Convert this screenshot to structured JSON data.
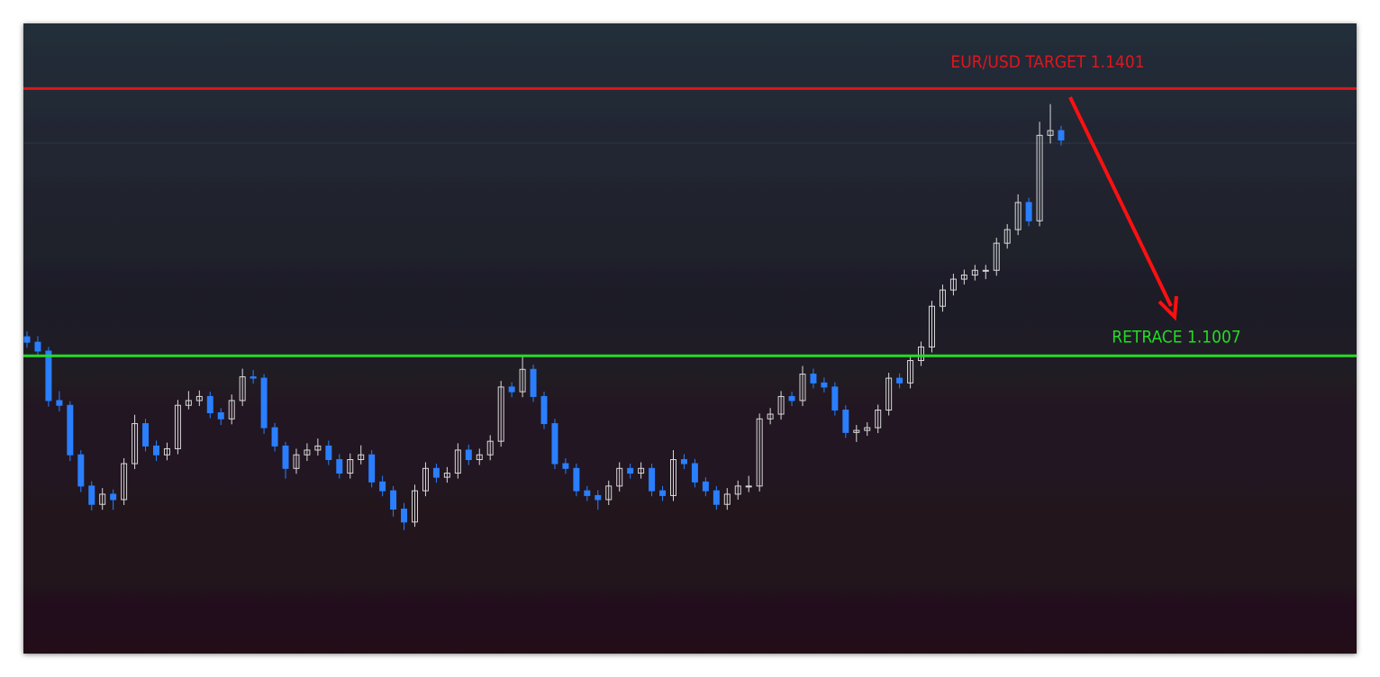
{
  "chart_data": {
    "type": "candlestick",
    "ylim": [
      1.0568,
      1.1497
    ],
    "up_color": "#d9d9d9",
    "down_color": "#2a7fff",
    "hlines": [
      {
        "value": 1.1401,
        "label": "EUR/USD TARGET 1.1401",
        "color": "#e0161b"
      },
      {
        "value": 1.1007,
        "label": "RETRACE 1.1007",
        "color": "#22dd22"
      }
    ],
    "ohlc": [
      [
        1.1035,
        1.1043,
        1.1019,
        1.1027
      ],
      [
        1.1027,
        1.1036,
        1.1005,
        1.1014
      ],
      [
        1.1014,
        1.102,
        1.0932,
        1.0941
      ],
      [
        1.0941,
        1.0955,
        1.0925,
        1.0934
      ],
      [
        1.0934,
        1.094,
        1.0852,
        1.0861
      ],
      [
        1.0861,
        1.0868,
        1.0806,
        1.0815
      ],
      [
        1.0815,
        1.0822,
        1.0779,
        1.0788
      ],
      [
        1.0788,
        1.0812,
        1.078,
        1.0803
      ],
      [
        1.0803,
        1.081,
        1.078,
        1.0795
      ],
      [
        1.0795,
        1.0856,
        1.0787,
        1.0848
      ],
      [
        1.0848,
        1.092,
        1.084,
        1.0907
      ],
      [
        1.0907,
        1.0914,
        1.0866,
        1.0874
      ],
      [
        1.0874,
        1.0882,
        1.0852,
        1.0861
      ],
      [
        1.0861,
        1.0879,
        1.0853,
        1.087
      ],
      [
        1.087,
        1.0942,
        1.0862,
        1.0934
      ],
      [
        1.0934,
        1.0955,
        1.0928,
        1.0941
      ],
      [
        1.0941,
        1.0956,
        1.0933,
        1.0947
      ],
      [
        1.0947,
        1.0954,
        1.0915,
        1.0923
      ],
      [
        1.0923,
        1.093,
        1.0905,
        1.0914
      ],
      [
        1.0914,
        1.095,
        1.0906,
        1.0941
      ],
      [
        1.0941,
        1.0988,
        1.0933,
        1.0976
      ],
      [
        1.0976,
        1.0986,
        1.0966,
        1.0974
      ],
      [
        1.0974,
        1.098,
        1.0892,
        1.0901
      ],
      [
        1.0901,
        1.0908,
        1.0866,
        1.0874
      ],
      [
        1.0874,
        1.088,
        1.0826,
        1.0841
      ],
      [
        1.0841,
        1.087,
        1.0833,
        1.0861
      ],
      [
        1.0861,
        1.0878,
        1.0852,
        1.0868
      ],
      [
        1.0868,
        1.0885,
        1.086,
        1.0874
      ],
      [
        1.0874,
        1.0882,
        1.0846,
        1.0854
      ],
      [
        1.0854,
        1.0862,
        1.0826,
        1.0834
      ],
      [
        1.0834,
        1.0863,
        1.0826,
        1.0854
      ],
      [
        1.0854,
        1.0875,
        1.0847,
        1.0861
      ],
      [
        1.0861,
        1.0868,
        1.0813,
        1.0821
      ],
      [
        1.0821,
        1.083,
        1.08,
        1.0808
      ],
      [
        1.0808,
        1.0815,
        1.077,
        1.0781
      ],
      [
        1.0781,
        1.079,
        1.075,
        1.0762
      ],
      [
        1.0762,
        1.0817,
        1.0755,
        1.0808
      ],
      [
        1.0808,
        1.085,
        1.08,
        1.0841
      ],
      [
        1.0841,
        1.0848,
        1.082,
        1.0828
      ],
      [
        1.0828,
        1.0843,
        1.082,
        1.0834
      ],
      [
        1.0834,
        1.0878,
        1.0826,
        1.0868
      ],
      [
        1.0868,
        1.0876,
        1.0846,
        1.0854
      ],
      [
        1.0854,
        1.087,
        1.0846,
        1.0861
      ],
      [
        1.0861,
        1.089,
        1.0853,
        1.0881
      ],
      [
        1.0881,
        1.097,
        1.0873,
        1.0961
      ],
      [
        1.0961,
        1.0968,
        1.0946,
        1.0954
      ],
      [
        1.0954,
        1.1008,
        1.0946,
        1.0987
      ],
      [
        1.0987,
        1.0994,
        1.0939,
        1.0947
      ],
      [
        1.0947,
        1.0954,
        1.0899,
        1.0907
      ],
      [
        1.0907,
        1.0914,
        1.084,
        1.0848
      ],
      [
        1.0848,
        1.0856,
        1.0833,
        1.0841
      ],
      [
        1.0841,
        1.0848,
        1.08,
        1.0808
      ],
      [
        1.0808,
        1.0815,
        1.0793,
        1.0801
      ],
      [
        1.0801,
        1.0809,
        1.078,
        1.0795
      ],
      [
        1.0795,
        1.0823,
        1.0787,
        1.0815
      ],
      [
        1.0815,
        1.085,
        1.0807,
        1.0841
      ],
      [
        1.0841,
        1.0848,
        1.0826,
        1.0834
      ],
      [
        1.0834,
        1.085,
        1.0826,
        1.0841
      ],
      [
        1.0841,
        1.0848,
        1.08,
        1.0808
      ],
      [
        1.0808,
        1.0815,
        1.0793,
        1.0801
      ],
      [
        1.0801,
        1.0868,
        1.0793,
        1.0854
      ],
      [
        1.0854,
        1.0862,
        1.084,
        1.0848
      ],
      [
        1.0848,
        1.0855,
        1.0813,
        1.0821
      ],
      [
        1.0821,
        1.0828,
        1.08,
        1.0808
      ],
      [
        1.0808,
        1.0815,
        1.078,
        1.0788
      ],
      [
        1.0788,
        1.0812,
        1.078,
        1.0803
      ],
      [
        1.0803,
        1.0823,
        1.0795,
        1.0815
      ],
      [
        1.0815,
        1.083,
        1.0806,
        1.0815
      ],
      [
        1.0815,
        1.0922,
        1.0807,
        1.0914
      ],
      [
        1.0914,
        1.093,
        1.0906,
        1.0921
      ],
      [
        1.0921,
        1.0955,
        1.0913,
        1.0947
      ],
      [
        1.0947,
        1.0954,
        1.0933,
        1.0941
      ],
      [
        1.0941,
        1.0992,
        1.0933,
        1.098
      ],
      [
        1.098,
        1.0988,
        1.0959,
        1.0967
      ],
      [
        1.0967,
        1.0975,
        1.0953,
        1.0961
      ],
      [
        1.0961,
        1.0968,
        1.0919,
        1.0927
      ],
      [
        1.0927,
        1.0934,
        1.0886,
        1.0894
      ],
      [
        1.0894,
        1.0905,
        1.088,
        1.0897
      ],
      [
        1.0897,
        1.0909,
        1.0889,
        1.0901
      ],
      [
        1.0901,
        1.0935,
        1.0893,
        1.0927
      ],
      [
        1.0927,
        1.0982,
        1.0919,
        1.0974
      ],
      [
        1.0974,
        1.0981,
        1.0959,
        1.0967
      ],
      [
        1.0967,
        1.1008,
        1.0959,
        1.1
      ],
      [
        1.1,
        1.1028,
        1.0992,
        1.102
      ],
      [
        1.102,
        1.1088,
        1.1012,
        1.108
      ],
      [
        1.108,
        1.1112,
        1.1072,
        1.1104
      ],
      [
        1.1104,
        1.1128,
        1.1096,
        1.112
      ],
      [
        1.112,
        1.1134,
        1.1112,
        1.1126
      ],
      [
        1.1126,
        1.1141,
        1.1118,
        1.1133
      ],
      [
        1.1133,
        1.1141,
        1.112,
        1.1133
      ],
      [
        1.1133,
        1.1181,
        1.1125,
        1.1173
      ],
      [
        1.1173,
        1.1201,
        1.1165,
        1.1193
      ],
      [
        1.1193,
        1.1245,
        1.1185,
        1.1233
      ],
      [
        1.1233,
        1.124,
        1.1198,
        1.1206
      ],
      [
        1.1206,
        1.1352,
        1.1198,
        1.1332
      ],
      [
        1.1332,
        1.1378,
        1.132,
        1.1339
      ],
      [
        1.1339,
        1.1346,
        1.1317,
        1.1325
      ]
    ]
  }
}
